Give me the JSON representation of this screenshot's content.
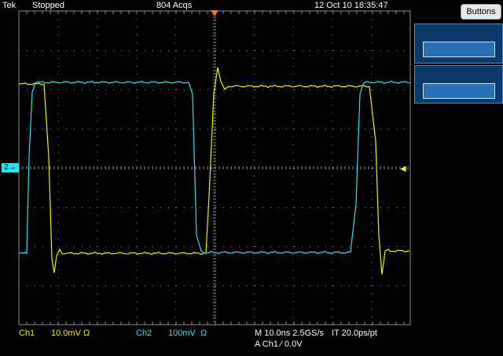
{
  "header": {
    "brand": "Tek",
    "run_state": "Stopped",
    "acquisitions": "804 Acqs",
    "timestamp": "12 Oct 10 18:35:47"
  },
  "side_panel": {
    "buttons_label": "Buttons"
  },
  "channel_marker": "2",
  "trigger_marker": "◀",
  "footer": {
    "ch1_label": "Ch1",
    "ch1_scale": "10.0mV",
    "ch1_coupling": "Ω",
    "ch2_label": "Ch2",
    "ch2_scale": "100mV",
    "ch2_coupling": "Ω",
    "timebase": "M 10.0ns 2.5GS/s",
    "interp": "IT 20.0ps/pt",
    "trigger": "A  Ch1  ∕  0.0V"
  },
  "colors": {
    "ch1": "#f2f200",
    "ch2": "#2fe1f0",
    "grid": "#8c8c8c",
    "trigger": "#ff7a00"
  }
}
